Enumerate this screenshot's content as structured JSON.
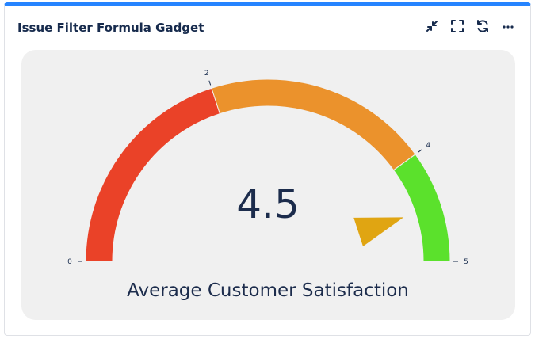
{
  "gadget": {
    "title": "Issue Filter Formula Gadget",
    "actions": [
      {
        "name": "minimize",
        "icon": "minimize-icon"
      },
      {
        "name": "fullscreen",
        "icon": "fullscreen-icon"
      },
      {
        "name": "refresh",
        "icon": "refresh-icon"
      },
      {
        "name": "more",
        "icon": "more-icon"
      }
    ]
  },
  "gauge": {
    "value": "4.5",
    "title": "Average Customer Satisfaction",
    "min": 0,
    "max": 5,
    "ticks": [
      {
        "value": 0,
        "label": "0"
      },
      {
        "value": 2,
        "label": "2"
      },
      {
        "value": 4,
        "label": "4"
      },
      {
        "value": 5,
        "label": "5"
      }
    ],
    "bands": [
      {
        "from": 0,
        "to": 2,
        "color": "#ea4228"
      },
      {
        "from": 2,
        "to": 4,
        "color": "#eb922c"
      },
      {
        "from": 4,
        "to": 5,
        "color": "#5be12c"
      }
    ],
    "needle_color": "#e0a512"
  }
}
